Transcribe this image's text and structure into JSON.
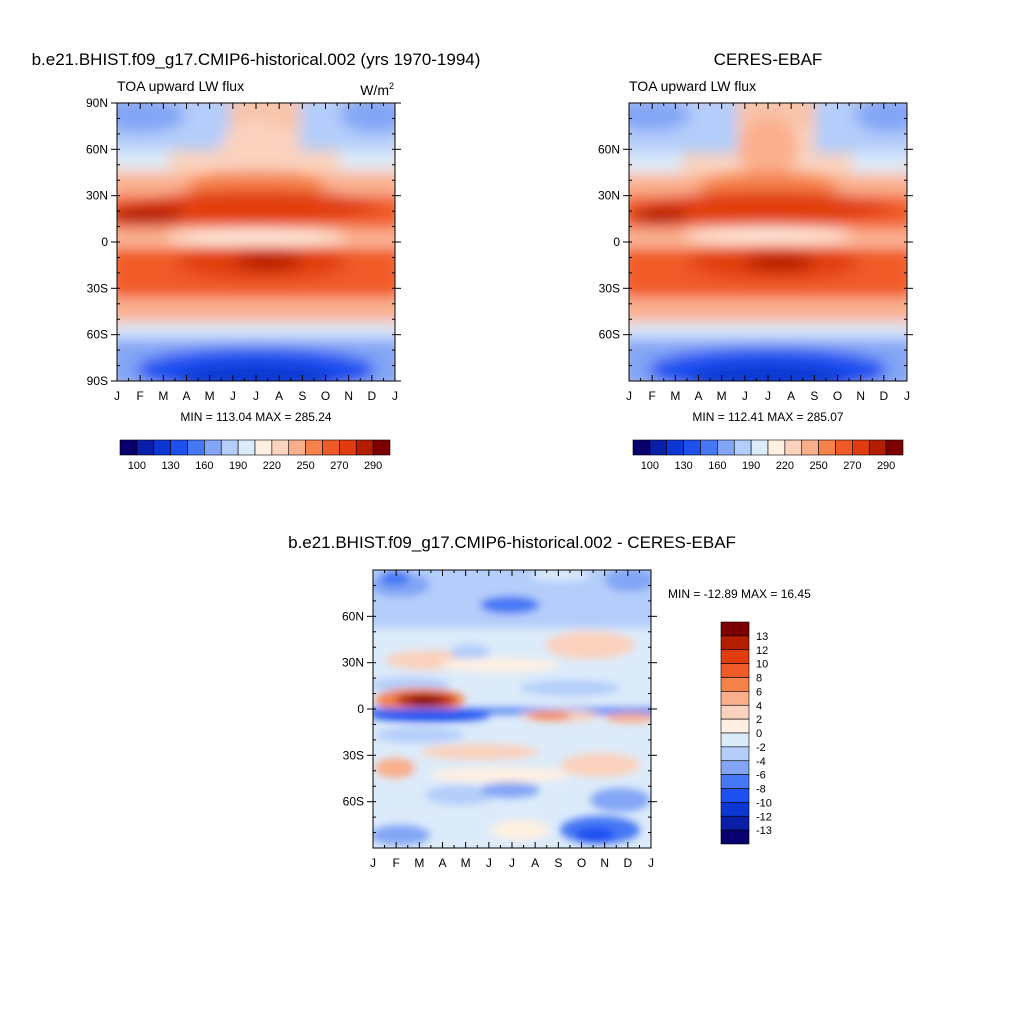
{
  "panels": [
    {
      "id": "model",
      "main_title": "b.e21.BHIST.f09_g17.CMIP6-historical.002 (yrs 1970-1994)",
      "left_title": "TOA upward LW flux",
      "units_base": "W/m",
      "units_sup": "2",
      "stats": "MIN = 113.04 MAX = 285.24"
    },
    {
      "id": "obs",
      "main_title": "CERES-EBAF",
      "left_title": "TOA upward LW flux",
      "units_base": "",
      "units_sup": "",
      "stats": "MIN = 112.41 MAX = 285.07"
    },
    {
      "id": "diff",
      "main_title": "b.e21.BHIST.f09_g17.CMIP6-historical.002 - CERES-EBAF",
      "left_title": "",
      "units_base": "",
      "units_sup": "",
      "stats": "MIN = -12.89 MAX =  16.45"
    }
  ],
  "chart_data": [
    {
      "type": "heatmap",
      "title": "b.e21.BHIST.f09_g17.CMIP6-historical.002 (yrs 1970-1994)",
      "subtitle": "TOA upward LW flux",
      "units": "W/m2",
      "x_ticks": [
        "J",
        "F",
        "M",
        "A",
        "M",
        "J",
        "J",
        "A",
        "S",
        "O",
        "N",
        "D",
        "J"
      ],
      "y_ticks": [
        "90N",
        "60N",
        "30N",
        "0",
        "30S",
        "60S",
        "90S"
      ],
      "ylim": [
        -90,
        90
      ],
      "min": 113.04,
      "max": 285.24,
      "colorbar": {
        "orientation": "horizontal",
        "labels": [
          "100",
          "130",
          "160",
          "190",
          "220",
          "250",
          "270",
          "290"
        ],
        "colors": [
          "#08006e",
          "#0a1ea8",
          "#0c37d2",
          "#1e50f0",
          "#4678f5",
          "#82a5f5",
          "#b4cdfa",
          "#dcebfa",
          "#fff0e1",
          "#fad2be",
          "#faaf8c",
          "#f5824b",
          "#f05a28",
          "#e13c0f",
          "#b41e00",
          "#7d0000"
        ]
      }
    },
    {
      "type": "heatmap",
      "title": "CERES-EBAF",
      "subtitle": "TOA upward LW flux",
      "x_ticks": [
        "J",
        "F",
        "M",
        "A",
        "M",
        "J",
        "J",
        "A",
        "S",
        "O",
        "N",
        "D",
        "J"
      ],
      "y_ticks": [
        "60N",
        "30N",
        "0",
        "30S",
        "60S"
      ],
      "ylim": [
        -90,
        90
      ],
      "min": 112.41,
      "max": 285.07,
      "colorbar": {
        "orientation": "horizontal",
        "labels": [
          "100",
          "130",
          "160",
          "190",
          "220",
          "250",
          "270",
          "290"
        ],
        "colors": [
          "#08006e",
          "#0a1ea8",
          "#0c37d2",
          "#1e50f0",
          "#4678f5",
          "#82a5f5",
          "#b4cdfa",
          "#dcebfa",
          "#fff0e1",
          "#fad2be",
          "#faaf8c",
          "#f5824b",
          "#f05a28",
          "#e13c0f",
          "#b41e00",
          "#7d0000"
        ]
      }
    },
    {
      "type": "heatmap",
      "title": "b.e21.BHIST.f09_g17.CMIP6-historical.002 - CERES-EBAF",
      "x_ticks": [
        "J",
        "F",
        "M",
        "A",
        "M",
        "J",
        "J",
        "A",
        "S",
        "O",
        "N",
        "D",
        "J"
      ],
      "y_ticks": [
        "60N",
        "30N",
        "0",
        "30S",
        "60S"
      ],
      "ylim": [
        -90,
        90
      ],
      "min": -12.89,
      "max": 16.45,
      "colorbar": {
        "orientation": "vertical",
        "labels": [
          "13",
          "12",
          "10",
          "8",
          "6",
          "4",
          "2",
          "0",
          "-2",
          "-4",
          "-6",
          "-8",
          "-10",
          "-12",
          "-13"
        ],
        "colors": [
          "#7d0000",
          "#b41e00",
          "#e13c0f",
          "#f05a28",
          "#f5824b",
          "#faaf8c",
          "#fad2be",
          "#fff0e1",
          "#dcebfa",
          "#b4cdfa",
          "#82a5f5",
          "#4678f5",
          "#1e50f0",
          "#0c37d2",
          "#0a1ea8",
          "#08006e"
        ]
      }
    }
  ]
}
